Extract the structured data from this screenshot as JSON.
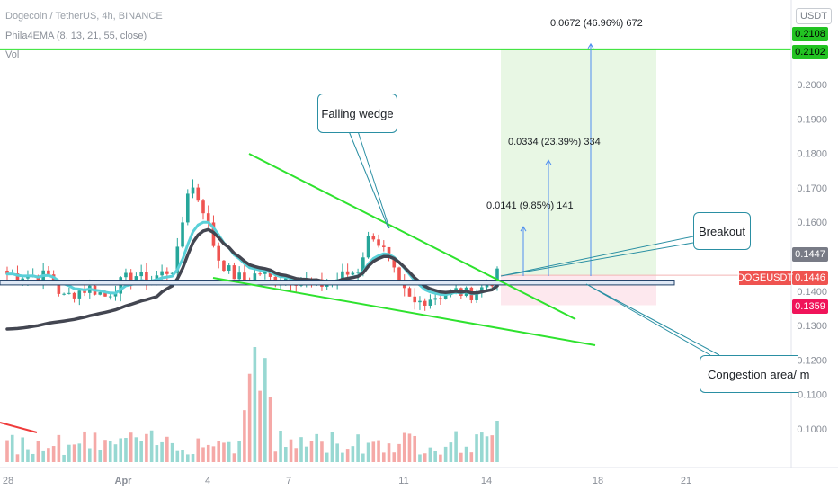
{
  "header": {
    "title": "Dogecoin / TetherUS, 4h, BINANCE",
    "indicator": "Phila4EMA (8, 13, 21, 55, close)",
    "volume_label": "Vol"
  },
  "price_axis": {
    "currency_button": "USDT",
    "tags": [
      {
        "label": "0.2108",
        "color": "#22c322",
        "text_color": "#000000"
      },
      {
        "label": "0.2102",
        "color": "#22c322",
        "text_color": "#000000"
      },
      {
        "label": "0.1447",
        "color": "#787b86",
        "text_color": "#ffffff"
      },
      {
        "label": "0.1446",
        "color": "#ef5350",
        "text_color": "#ffffff"
      },
      {
        "label": "0.1359",
        "color": "#f0145a",
        "text_color": "#ffffff"
      }
    ],
    "symbol_tag": "DOGEUSDT"
  },
  "annotations": {
    "falling_wedge": "Falling wedge",
    "breakout": "Breakout",
    "congestion": "Congestion area/ m",
    "measure_1": "0.0141 (9.85%) 141",
    "measure_2": "0.0334 (23.39%) 334",
    "measure_3": "0.0672 (46.96%) 672"
  },
  "colors": {
    "up": "#26a69a",
    "down": "#ef5350",
    "ema_fast": "#5ad0d8",
    "ema_slow": "#434651",
    "wedge": "#2ee22e",
    "target_zone": "#e8f7e4",
    "stop_zone": "#fde8ee"
  },
  "chart_data": {
    "type": "candlestick",
    "title": "Dogecoin / TetherUS, 4h, BINANCE",
    "x_ticks": [
      "28",
      "Apr",
      "4",
      "7",
      "11",
      "14",
      "18",
      "21"
    ],
    "y_ticks": [
      0.2,
      0.19,
      0.18,
      0.17,
      0.16,
      0.15,
      0.14,
      0.13,
      0.12,
      0.11,
      0.1
    ],
    "ylim": [
      0.095,
      0.22
    ],
    "last_price": 0.1446,
    "target_line": 0.2102,
    "stop_level": 0.1359,
    "trades_targets": [
      0.1587,
      0.178,
      0.2118
    ],
    "wedge": {
      "upper": [
        {
          "t": 5.3,
          "p": 0.18
        },
        {
          "t": 15.6,
          "p": 0.1325
        }
      ],
      "lower": [
        {
          "t": 3.4,
          "p": 0.143
        },
        {
          "t": 16.4,
          "p": 0.124
        }
      ]
    },
    "congestion_band": [
      0.1418,
      0.1432
    ],
    "grid": false,
    "legend_position": "top-left"
  }
}
